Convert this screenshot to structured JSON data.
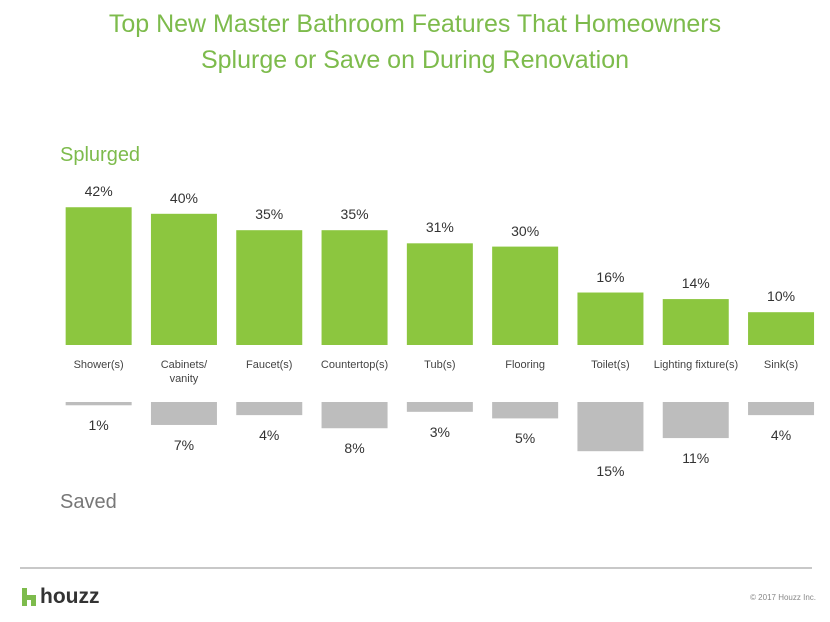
{
  "chart_data": {
    "type": "bar",
    "title": "Top New Master Bathroom Features That Homeowners\nSplurge or Save on During Renovation",
    "categories": [
      "Shower(s)",
      "Cabinets/\nvanity",
      "Faucet(s)",
      "Countertop(s)",
      "Tub(s)",
      "Flooring",
      "Toilet(s)",
      "Lighting fixture(s)",
      "Sink(s)"
    ],
    "series": [
      {
        "name": "Splurged",
        "color": "#8cc63f",
        "values": [
          42,
          40,
          35,
          35,
          31,
          30,
          16,
          14,
          10
        ],
        "value_labels": [
          "42%",
          "40%",
          "35%",
          "35%",
          "31%",
          "30%",
          "16%",
          "14%",
          "10%"
        ]
      },
      {
        "name": "Saved",
        "color": "#bdbdbd",
        "values": [
          1,
          7,
          4,
          8,
          3,
          5,
          15,
          11,
          4
        ],
        "value_labels": [
          "1%",
          "7%",
          "4%",
          "8%",
          "3%",
          "5%",
          "15%",
          "11%",
          "4%"
        ]
      }
    ]
  },
  "brand": "houzz",
  "copyright": "© 2017 Houzz Inc."
}
